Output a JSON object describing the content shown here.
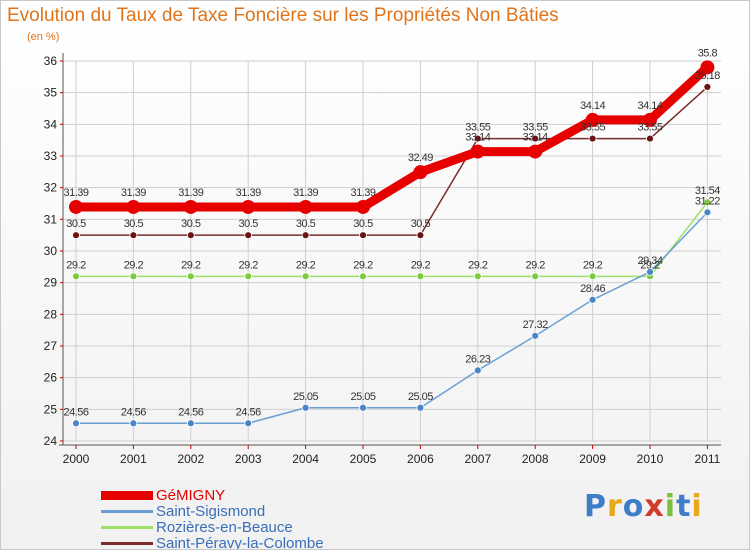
{
  "title": "Evolution du Taux de Taxe Foncière sur les Propriétés Non Bâties",
  "unit_label": "(en %)",
  "logo_text": "Proxiti",
  "colors": {
    "title": "#e0741a",
    "legend_text": "#3a6fb7",
    "axis": "#555555",
    "grid": "#cfcfcf"
  },
  "chart_data": {
    "type": "line",
    "title": "Evolution du Taux de Taxe Foncière sur les Propriétés Non Bâties",
    "xlabel": "",
    "ylabel": "(en %)",
    "categories": [
      "2000",
      "2001",
      "2002",
      "2003",
      "2004",
      "2005",
      "2006",
      "2007",
      "2008",
      "2009",
      "2010",
      "2011"
    ],
    "ylim": [
      24,
      36
    ],
    "yticks": [
      24,
      25,
      26,
      27,
      28,
      29,
      30,
      31,
      32,
      33,
      34,
      35,
      36
    ],
    "grid": true,
    "legend_position": "bottom-left",
    "series": [
      {
        "name": "GéMIGNY",
        "color": "#e60000",
        "values": [
          31.39,
          31.39,
          31.39,
          31.39,
          31.39,
          31.39,
          32.49,
          33.14,
          33.14,
          34.14,
          34.14,
          35.8
        ],
        "labels": [
          "31.39",
          "31.39",
          "31.39",
          "31.39",
          "31.39",
          "31.39",
          "32.49",
          "33.14",
          "33.14",
          "34.14",
          "34.14",
          "35.8"
        ],
        "bold": true
      },
      {
        "name": "Saint-Sigismond",
        "color": "#6a9fd4",
        "marker_color": "#4a86c5",
        "values": [
          24.56,
          24.56,
          24.56,
          24.56,
          25.05,
          25.05,
          25.05,
          26.23,
          27.32,
          28.46,
          29.34,
          31.22
        ],
        "labels": [
          "24.56",
          "24.56",
          "24.56",
          "24.56",
          "25.05",
          "25.05",
          "25.05",
          "26.23",
          "27.32",
          "28.46",
          "29.34",
          "31.22"
        ]
      },
      {
        "name": "Rozières-en-Beauce",
        "color": "#9ee067",
        "marker_color": "#7ccb3f",
        "values": [
          29.2,
          29.2,
          29.2,
          29.2,
          29.2,
          29.2,
          29.2,
          29.2,
          29.2,
          29.2,
          29.2,
          31.54
        ],
        "labels": [
          "29.2",
          "29.2",
          "29.2",
          "29.2",
          "29.2",
          "29.2",
          "29.2",
          "29.2",
          "29.2",
          "29.2",
          "29.2",
          "31.54"
        ]
      },
      {
        "name": "Saint-Péravy-la-Colombe",
        "color": "#7a2b2b",
        "marker_color": "#6b1414",
        "values": [
          30.5,
          30.5,
          30.5,
          30.5,
          30.5,
          30.5,
          30.5,
          33.55,
          33.55,
          33.55,
          33.55,
          35.18
        ],
        "labels": [
          "30.5",
          "30.5",
          "30.5",
          "30.5",
          "30.5",
          "30.5",
          "30.5",
          "33.55",
          "33.55",
          "33.55",
          "33.55",
          "35.18"
        ]
      }
    ]
  }
}
